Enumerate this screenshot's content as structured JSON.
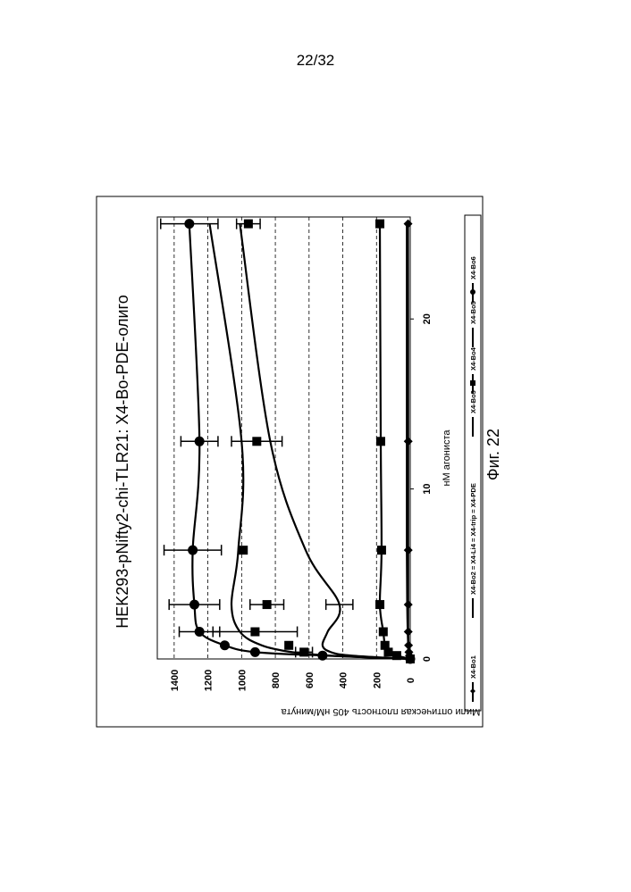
{
  "page_number": "22/32",
  "figure_caption": "Фиг. 22",
  "chart_data": {
    "type": "line",
    "title": "HEK293-pNifty2-chi-TLR21: X4-Bo-PDE-олиго",
    "xlabel": "нМ агониста",
    "ylabel": "Мили оптическая плотность 405 нМ/минута",
    "xlim": [
      0,
      26
    ],
    "ylim": [
      0,
      1500
    ],
    "xticks": [
      0,
      10,
      20
    ],
    "yticks": [
      0,
      200,
      400,
      600,
      800,
      1000,
      1200,
      1400
    ],
    "grid": "horizontal dashed",
    "legend_position": "bottom",
    "orientation": "rotated 90° counter-clockwise",
    "x": [
      0,
      0.2,
      0.4,
      0.8,
      1.6,
      3.2,
      6.4,
      12.8,
      25.6
    ],
    "series": [
      {
        "name": "X4-Bo1",
        "marker": "diamond",
        "values": [
          0,
          5,
          8,
          10,
          12,
          12,
          12,
          12,
          13
        ],
        "errors": [
          0,
          0,
          0,
          0,
          0,
          0,
          0,
          0,
          0
        ]
      },
      {
        "name": "X4-Bo2 = X4-Li4 = X4-trip = X4-PDE",
        "marker": "none",
        "values": [
          0,
          8,
          10,
          12,
          15,
          18,
          20,
          20,
          20
        ],
        "errors": [
          0,
          0,
          0,
          0,
          0,
          0,
          0,
          0,
          0
        ]
      },
      {
        "name": "X4-Bo3",
        "marker": "none",
        "values": [
          0,
          350,
          470,
          520,
          490,
          420,
          620,
          830,
          1010
        ],
        "errors": [
          0,
          0,
          0,
          0,
          0,
          80,
          0,
          0,
          0
        ]
      },
      {
        "name": "X4-Bo4",
        "marker": "square",
        "values": [
          0,
          80,
          130,
          150,
          160,
          180,
          170,
          175,
          180
        ],
        "errors": [
          0,
          0,
          0,
          0,
          0,
          0,
          0,
          0,
          0
        ]
      },
      {
        "name": "X4-Bo5",
        "marker": "none",
        "values": [
          0,
          480,
          700,
          880,
          1010,
          1060,
          1020,
          1000,
          1190
        ],
        "errors": [
          0,
          0,
          0,
          0,
          0,
          0,
          0,
          0,
          0
        ]
      },
      {
        "name": "X4-Bo6",
        "marker": "circle",
        "values": [
          0,
          520,
          920,
          1100,
          1250,
          1280,
          1290,
          1250,
          1310
        ],
        "errors": [
          0,
          0,
          0,
          0,
          120,
          150,
          170,
          110,
          170
        ]
      }
    ],
    "extra_squares": {
      "x": [
        0.4,
        0.8,
        1.6,
        3.2,
        6.4,
        12.8,
        25.6
      ],
      "values": [
        630,
        720,
        920,
        850,
        990,
        910,
        960
      ],
      "errors": [
        50,
        0,
        250,
        100,
        0,
        150,
        70
      ]
    }
  }
}
